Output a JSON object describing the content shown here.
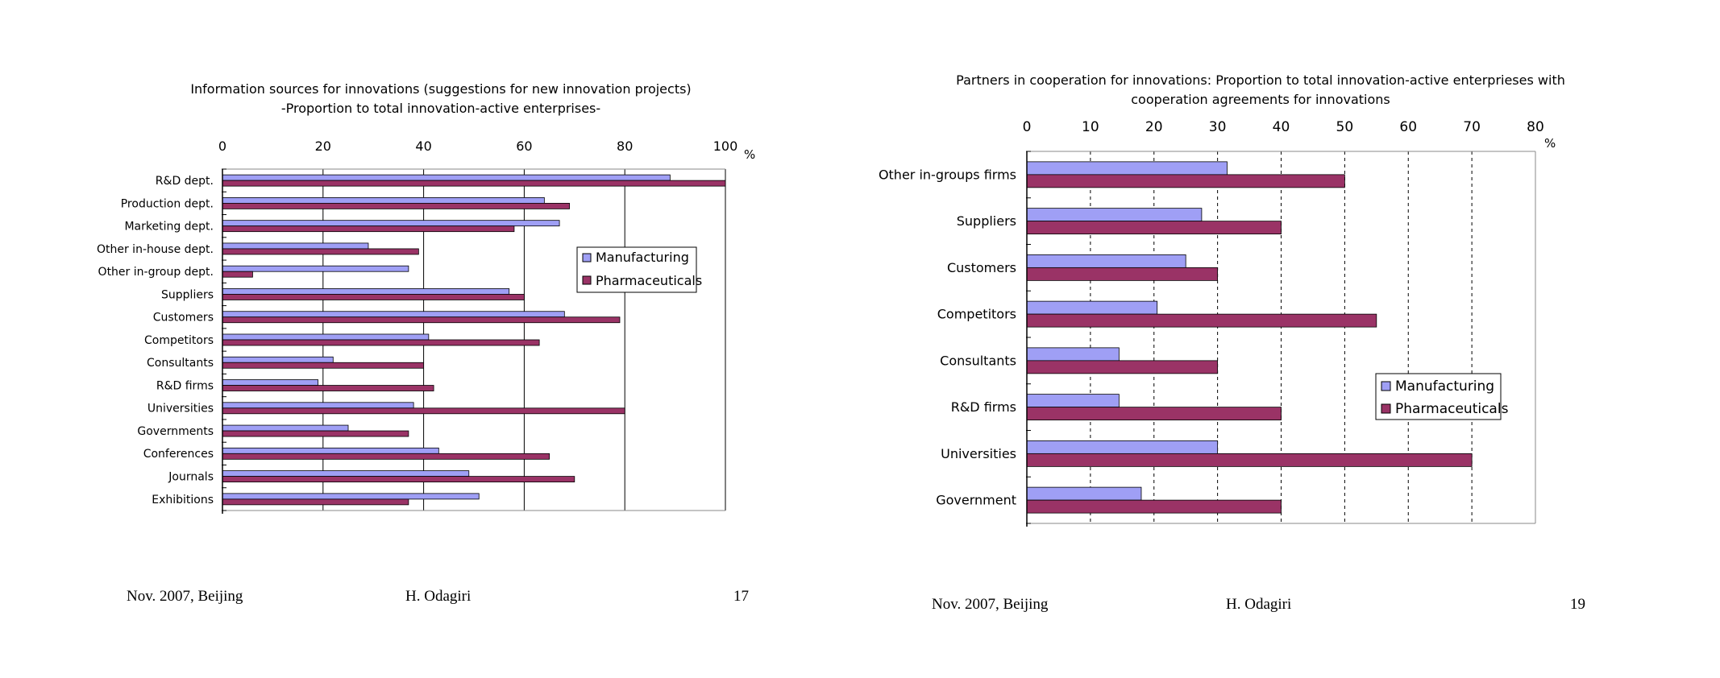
{
  "slides": [
    {
      "footer": {
        "left": "Nov. 2007, Beijing",
        "center": "H. Odagiri",
        "page": "17"
      }
    },
    {
      "footer": {
        "left": "Nov. 2007, Beijing",
        "center": "H. Odagiri",
        "page": "19"
      }
    }
  ],
  "colors": {
    "manufacturing": "#9f9ff5",
    "pharmaceuticals": "#9a3366",
    "axis": "#000000"
  },
  "chart_data": [
    {
      "type": "bar",
      "orientation": "horizontal",
      "title": "Information sources for innovations (suggestions for new innovation projects)",
      "subtitle": "-Proportion to total innovation-active enterprises-",
      "unit_label": "%",
      "xlim": [
        0,
        100
      ],
      "ticks": [
        0,
        20,
        40,
        60,
        80,
        100
      ],
      "grid": "solid",
      "legend_position": "right",
      "categories": [
        "R&D dept.",
        "Production dept.",
        "Marketing dept.",
        "Other in-house dept.",
        "Other in-group dept.",
        "Suppliers",
        "Customers",
        "Competitors",
        "Consultants",
        "R&D firms",
        "Universities",
        "Governments",
        "Conferences",
        "Journals",
        "Exhibitions"
      ],
      "series": [
        {
          "name": "Manufacturing",
          "values": [
            89,
            64,
            67,
            29,
            37,
            57,
            68,
            41,
            22,
            19,
            38,
            25,
            43,
            49,
            51
          ]
        },
        {
          "name": "Pharmaceuticals",
          "values": [
            100,
            69,
            58,
            39,
            6,
            60,
            79,
            63,
            40,
            42,
            80,
            37,
            65,
            70,
            37
          ]
        }
      ]
    },
    {
      "type": "bar",
      "orientation": "horizontal",
      "title": "Partners in cooperation for innovations: Proportion to total innovation-active enterprieses with",
      "subtitle": "cooperation agreements for innovations",
      "unit_label": "%",
      "xlim": [
        0,
        80
      ],
      "ticks": [
        0,
        10,
        20,
        30,
        40,
        50,
        60,
        70,
        80
      ],
      "grid": "dashed",
      "legend_position": "lower-right",
      "categories": [
        "Other in-groups firms",
        "Suppliers",
        "Customers",
        "Competitors",
        "Consultants",
        "R&D firms",
        "Universities",
        "Government"
      ],
      "series": [
        {
          "name": "Manufacturing",
          "values": [
            31.5,
            27.5,
            25,
            20.5,
            14.5,
            14.5,
            30,
            18
          ]
        },
        {
          "name": "Pharmaceuticals",
          "values": [
            50,
            40,
            30,
            55,
            30,
            40,
            70,
            40
          ]
        }
      ]
    }
  ]
}
